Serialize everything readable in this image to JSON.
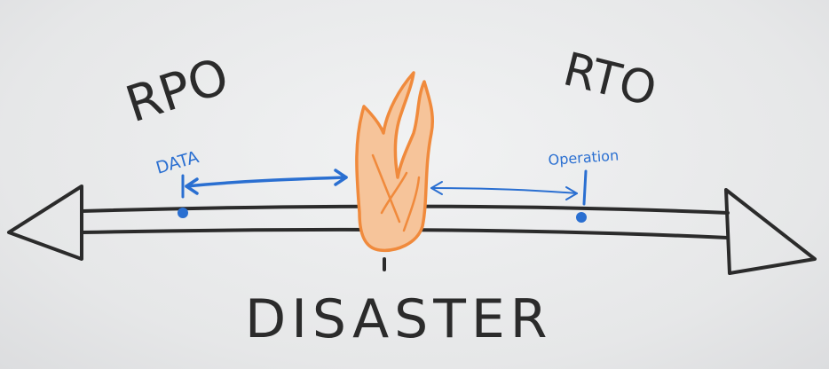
{
  "labels": {
    "rpo": "RPO",
    "rto": "RTO",
    "data": "DATA",
    "operation": "Operation",
    "disaster": "DISASTER"
  },
  "colors": {
    "marker_black": "#2b2b2b",
    "marker_blue": "#2a6fd1",
    "flame_orange": "#f08a3c",
    "board": "#e9eaeb"
  },
  "icons": {
    "fire": "fire-icon"
  }
}
